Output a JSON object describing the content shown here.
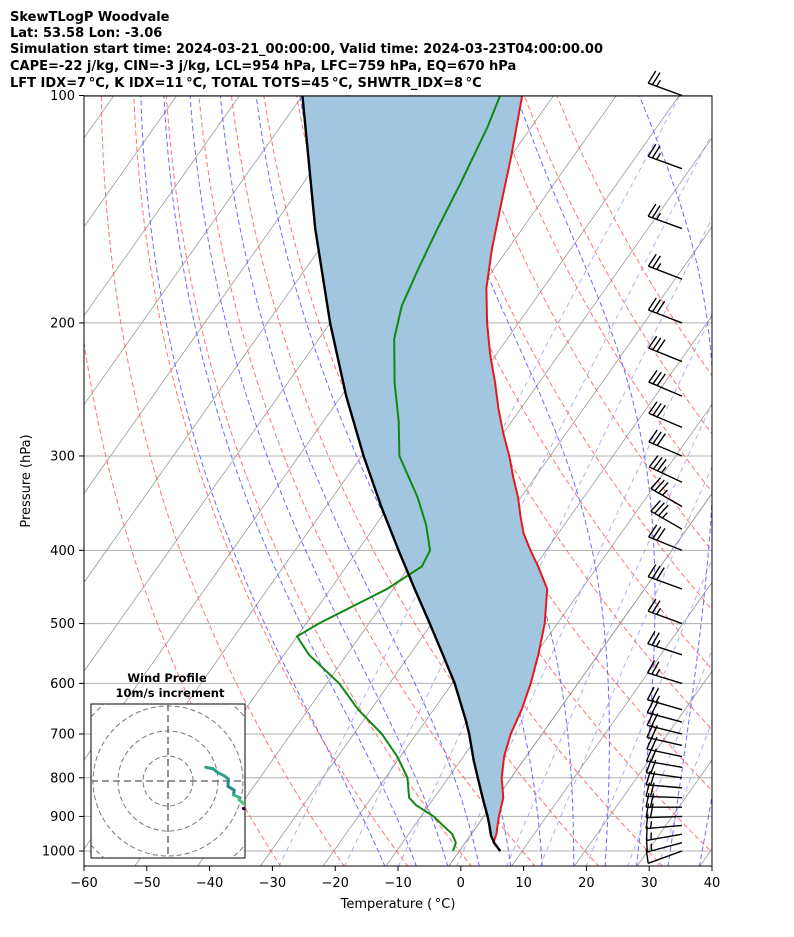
{
  "header": {
    "line1": "SkewTLogP Woodvale",
    "line2": "Lat: 53.58   Lon: -3.06",
    "line3": "Simulation start time: 2024-03-21_00:00:00, Valid time: 2024-03-23T04:00:00.00",
    "line4": "CAPE=-22 j/kg, CIN=-3 j/kg, LCL=954 hPa, LFC=759 hPa, EQ=670 hPa",
    "line5": "LFT IDX=7 °C, K IDX=11 °C, TOTAL TOTS=45 °C, SHWTR_IDX=8 °C"
  },
  "hodograph": {
    "title": "Wind Profile",
    "subtitle": "10m/s increment"
  },
  "colors": {
    "temperature": "#e31a1c",
    "dewpoint": "#118811",
    "parcel": "#000000",
    "cape_fill": "#a2c6e0",
    "dry_adiabat": "#ff5b5b",
    "moist_adiabat": "#5a5aff",
    "mixing_ratio": "#7a7af0",
    "isotherm": "#9a9a9a",
    "freezing_line": "#9933cc"
  },
  "chart_data": {
    "type": "line",
    "title": "SkewTLogP Woodvale",
    "xlabel": "Temperature ( °C)",
    "ylabel": "Pressure (hPa)",
    "xlim": [
      -60,
      40
    ],
    "ylim": [
      1050,
      100
    ],
    "yscale": "log",
    "x_ticks": [
      "−60",
      "−50",
      "−40",
      "−30",
      "−20",
      "−10",
      "0",
      "10",
      "20",
      "30",
      "40"
    ],
    "y_ticks": [
      "100",
      "200",
      "300",
      "400",
      "500",
      "600",
      "700",
      "800",
      "900",
      "1000"
    ],
    "grid": true,
    "series": [
      {
        "key": "temperature",
        "points": [
          [
            1000,
            6.5
          ],
          [
            975,
            4.5
          ],
          [
            950,
            4.0
          ],
          [
            925,
            3.2
          ],
          [
            900,
            2.4
          ],
          [
            850,
            1.0
          ],
          [
            800,
            -1.5
          ],
          [
            750,
            -3.5
          ],
          [
            700,
            -5.0
          ],
          [
            650,
            -6.0
          ],
          [
            600,
            -7.5
          ],
          [
            550,
            -9.5
          ],
          [
            500,
            -12.0
          ],
          [
            450,
            -15.5
          ],
          [
            420,
            -19.5
          ],
          [
            400,
            -22.5
          ],
          [
            380,
            -25.5
          ],
          [
            360,
            -28.0
          ],
          [
            340,
            -30.5
          ],
          [
            320,
            -33.5
          ],
          [
            300,
            -36.5
          ],
          [
            280,
            -40.0
          ],
          [
            260,
            -43.5
          ],
          [
            240,
            -47.0
          ],
          [
            220,
            -51.0
          ],
          [
            200,
            -55.0
          ],
          [
            180,
            -59.0
          ],
          [
            160,
            -62.5
          ],
          [
            140,
            -66.0
          ],
          [
            120,
            -70.0
          ],
          [
            100,
            -75.0
          ]
        ]
      },
      {
        "key": "dewpoint",
        "points": [
          [
            1000,
            -1.0
          ],
          [
            975,
            -1.5
          ],
          [
            950,
            -3.0
          ],
          [
            925,
            -5.5
          ],
          [
            900,
            -8.0
          ],
          [
            870,
            -12.0
          ],
          [
            850,
            -14.0
          ],
          [
            800,
            -16.5
          ],
          [
            750,
            -20.5
          ],
          [
            700,
            -25.5
          ],
          [
            650,
            -32.0
          ],
          [
            600,
            -38.0
          ],
          [
            550,
            -46.0
          ],
          [
            520,
            -50.0
          ],
          [
            500,
            -48.0
          ],
          [
            450,
            -41.0
          ],
          [
            420,
            -38.0
          ],
          [
            400,
            -38.5
          ],
          [
            370,
            -42.0
          ],
          [
            340,
            -46.5
          ],
          [
            300,
            -54.0
          ],
          [
            270,
            -58.0
          ],
          [
            240,
            -63.0
          ],
          [
            210,
            -68.0
          ],
          [
            190,
            -70.5
          ],
          [
            170,
            -72.0
          ],
          [
            150,
            -73.5
          ],
          [
            130,
            -75.0
          ],
          [
            110,
            -77.0
          ],
          [
            100,
            -78.5
          ]
        ]
      },
      {
        "key": "parcel",
        "points": [
          [
            1000,
            6.5
          ],
          [
            975,
            4.6
          ],
          [
            954,
            3.3
          ],
          [
            925,
            1.9
          ],
          [
            900,
            0.6
          ],
          [
            850,
            -2.3
          ],
          [
            800,
            -5.3
          ],
          [
            759,
            -7.9
          ],
          [
            700,
            -11.6
          ],
          [
            670,
            -13.8
          ],
          [
            600,
            -19.6
          ],
          [
            550,
            -24.7
          ],
          [
            500,
            -30.3
          ],
          [
            450,
            -36.6
          ],
          [
            400,
            -43.5
          ],
          [
            350,
            -51.2
          ],
          [
            300,
            -59.7
          ],
          [
            250,
            -69.2
          ],
          [
            200,
            -80.0
          ],
          [
            150,
            -93.0
          ],
          [
            100,
            -110.0
          ]
        ]
      }
    ],
    "wind_barbs": {
      "pressures": [
        1000,
        975,
        950,
        925,
        900,
        875,
        850,
        825,
        800,
        775,
        750,
        725,
        700,
        675,
        650,
        600,
        550,
        500,
        450,
        400,
        375,
        350,
        325,
        300,
        275,
        250,
        225,
        200,
        175,
        150,
        125,
        100
      ],
      "direction_deg": [
        250,
        255,
        260,
        265,
        268,
        270,
        272,
        275,
        278,
        280,
        282,
        283,
        284,
        285,
        286,
        287,
        288,
        290,
        290,
        292,
        300,
        300,
        295,
        293,
        293,
        293,
        292,
        291,
        291,
        290,
        290,
        290
      ],
      "speed_kt": [
        12,
        14,
        15,
        17,
        18,
        18,
        18,
        18,
        20,
        20,
        20,
        22,
        22,
        22,
        23,
        24,
        26,
        26,
        28,
        32,
        36,
        36,
        34,
        32,
        32,
        30,
        30,
        28,
        26,
        26,
        24,
        24
      ]
    }
  }
}
